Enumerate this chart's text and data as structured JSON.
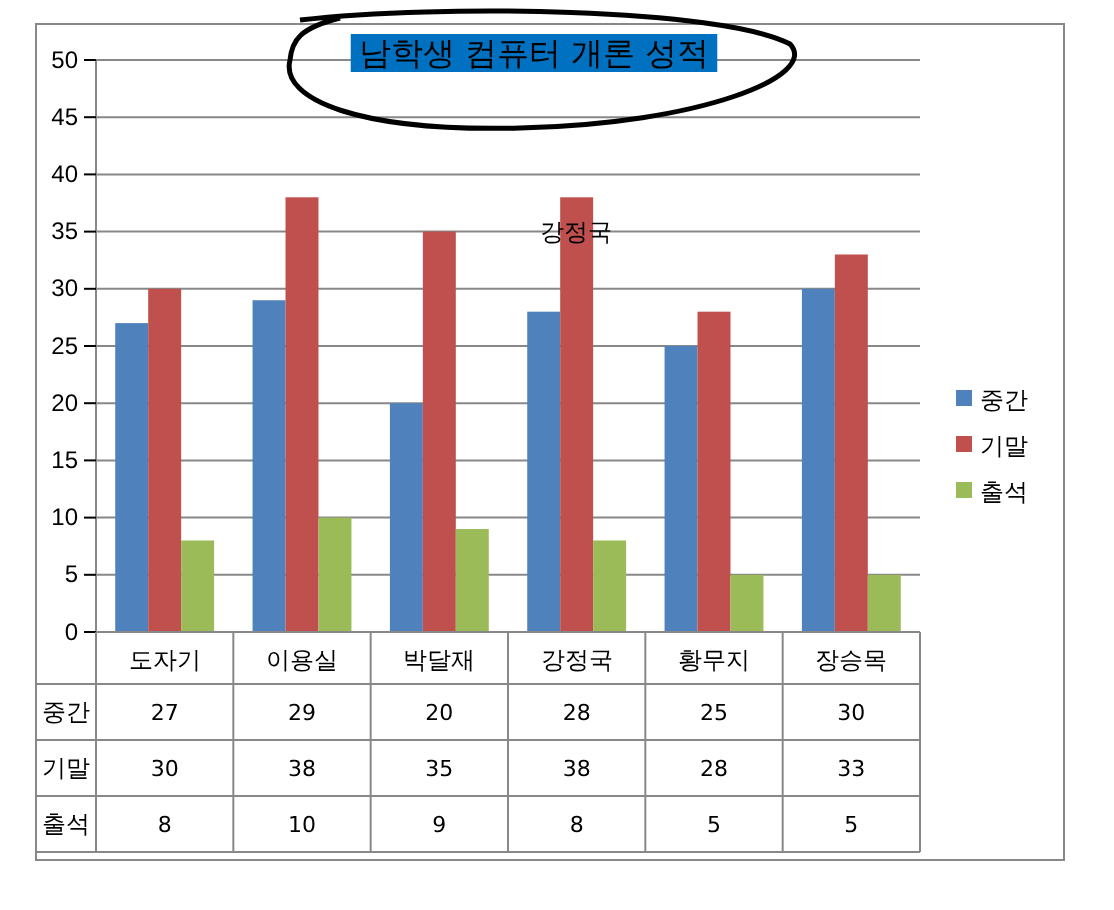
{
  "chart_data": {
    "type": "bar",
    "title": "남학생 컴퓨터 개론 성적",
    "categories": [
      "도자기",
      "이용실",
      "박달재",
      "강정국",
      "황무지",
      "장승목"
    ],
    "series": [
      {
        "name": "중간",
        "color": "#4f81bd",
        "values": [
          27,
          29,
          20,
          28,
          25,
          30
        ]
      },
      {
        "name": "기말",
        "color": "#c0504d",
        "values": [
          30,
          38,
          35,
          38,
          28,
          33
        ]
      },
      {
        "name": "출석",
        "color": "#9bbb59",
        "values": [
          8,
          10,
          9,
          8,
          5,
          5
        ]
      }
    ],
    "ylim": [
      0,
      50
    ],
    "yticks": [
      0,
      5,
      10,
      15,
      20,
      25,
      30,
      35,
      40,
      45,
      50
    ],
    "grid": "y",
    "legend": "right",
    "data_labels": true,
    "annotations": [
      "강정국"
    ]
  }
}
